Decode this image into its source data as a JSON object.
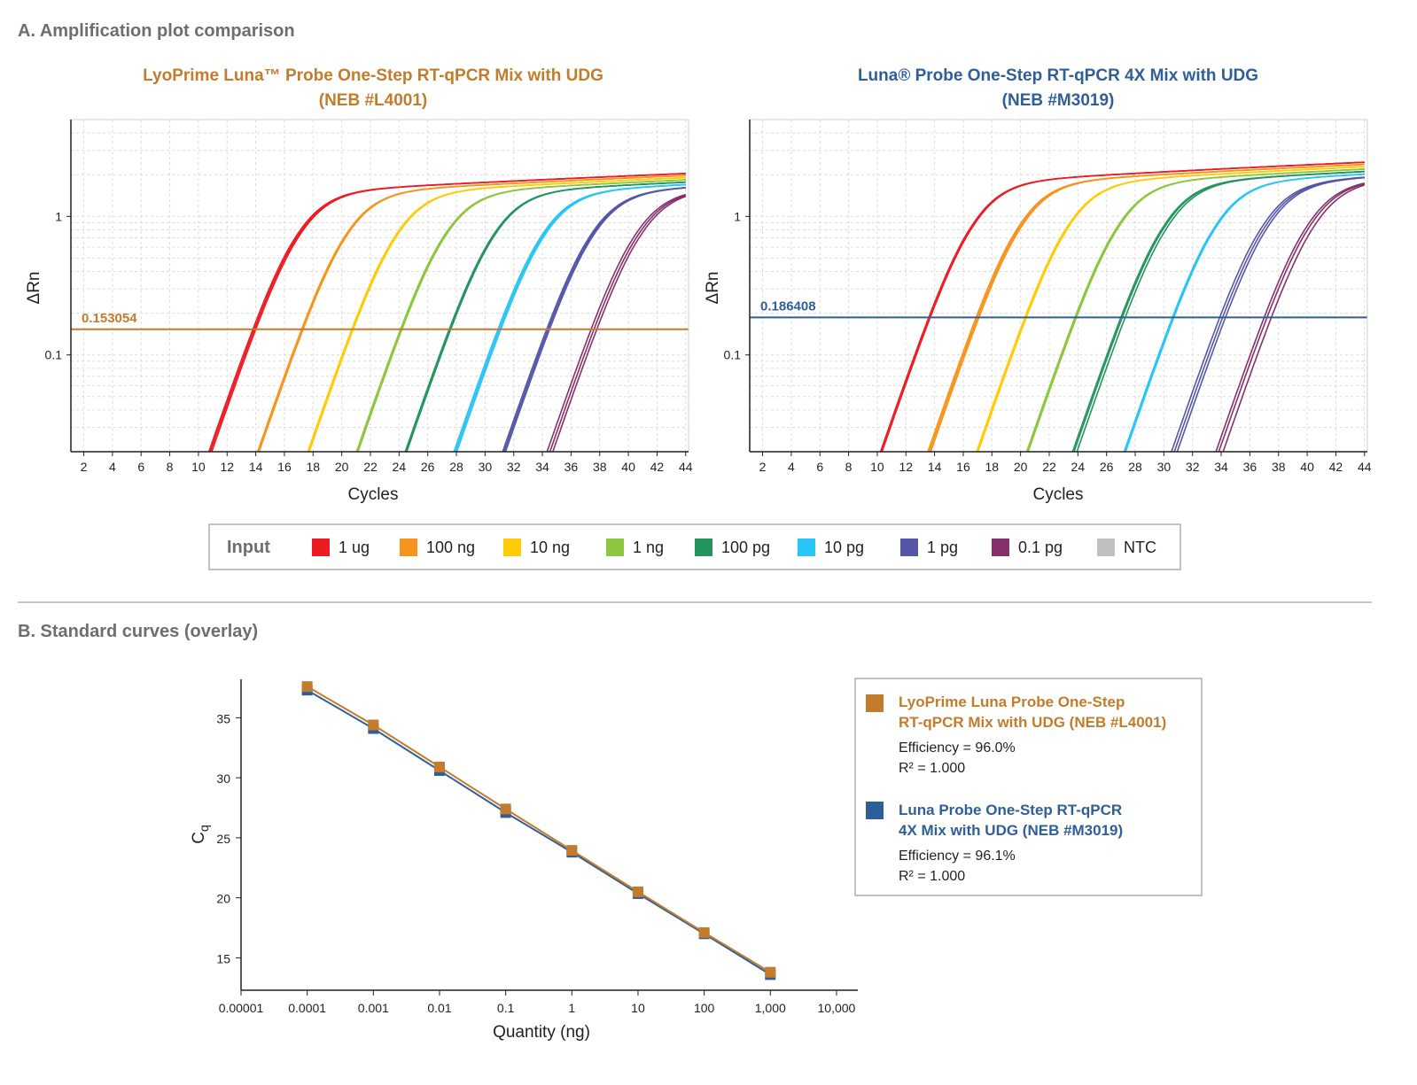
{
  "section_a_title": "A. Amplification plot comparison",
  "section_b_title": "B. Standard curves (overlay)",
  "legend_a": {
    "title": "Input",
    "items": [
      {
        "label": "1 ug",
        "color": "#ed1c24"
      },
      {
        "label": "100 ng",
        "color": "#f7941d"
      },
      {
        "label": "10 ng",
        "color": "#ffcb05"
      },
      {
        "label": "1 ng",
        "color": "#8dc63f"
      },
      {
        "label": "100 pg",
        "color": "#24955e"
      },
      {
        "label": "10 pg",
        "color": "#29c5f6"
      },
      {
        "label": "1 pg",
        "color": "#5656a8"
      },
      {
        "label": "0.1 pg",
        "color": "#86306e"
      },
      {
        "label": "NTC",
        "color": "#c0c0c0"
      }
    ]
  },
  "chart_data": [
    {
      "type": "line",
      "title_line1": "LyoPrime Luna™ Probe One-Step RT-qPCR Mix with UDG",
      "title_line2": "(NEB #L4001)",
      "title_color": "#c27c2c",
      "xlabel": "Cycles",
      "ylabel": "ΔRn",
      "y_scale": "log",
      "xlim": [
        1.1,
        44.2
      ],
      "ylim": [
        0.02,
        5
      ],
      "x_ticks": [
        "2",
        "4",
        "6",
        "8",
        "10",
        "12",
        "14",
        "16",
        "18",
        "20",
        "22",
        "24",
        "26",
        "28",
        "30",
        "32",
        "34",
        "36",
        "38",
        "40",
        "42",
        "44"
      ],
      "y_ticks": [
        "1",
        "0.1"
      ],
      "grid": true,
      "threshold": {
        "value": 0.153054,
        "label": "0.153054",
        "color": "#c27c2c"
      },
      "plateau": 1.5,
      "series": [
        {
          "name": "1 ug",
          "cq": [
            13.8,
            13.9,
            14.0
          ]
        },
        {
          "name": "100 ng",
          "cq": [
            17.2,
            17.3,
            17.3
          ]
        },
        {
          "name": "10 ng",
          "cq": [
            20.7,
            20.8,
            20.8
          ]
        },
        {
          "name": "1 ng",
          "cq": [
            24.1,
            24.2,
            24.2
          ]
        },
        {
          "name": "100 pg",
          "cq": [
            27.5,
            27.6,
            27.6
          ]
        },
        {
          "name": "10 pg",
          "cq": [
            30.9,
            31.0,
            31.1
          ]
        },
        {
          "name": "1 pg",
          "cq": [
            34.3,
            34.4,
            34.5
          ]
        },
        {
          "name": "0.1 pg",
          "cq": [
            37.4,
            37.6,
            37.8
          ]
        }
      ]
    },
    {
      "type": "line",
      "title_line1": "Luna® Probe One-Step RT-qPCR 4X Mix with UDG",
      "title_line2": "(NEB #M3019)",
      "title_color": "#2f5f98",
      "xlabel": "Cycles",
      "ylabel": "ΔRn",
      "y_scale": "log",
      "xlim": [
        1.1,
        44.2
      ],
      "ylim": [
        0.02,
        5
      ],
      "x_ticks": [
        "2",
        "4",
        "6",
        "8",
        "10",
        "12",
        "14",
        "16",
        "18",
        "20",
        "22",
        "24",
        "26",
        "28",
        "30",
        "32",
        "34",
        "36",
        "38",
        "40",
        "42",
        "44"
      ],
      "y_ticks": [
        "1",
        "0.1"
      ],
      "grid": true,
      "threshold": {
        "value": 0.186408,
        "label": "0.186408",
        "color": "#2f5f98"
      },
      "plateau": 1.75,
      "series": [
        {
          "name": "1 ug",
          "cq": [
            13.6,
            13.6,
            13.7
          ]
        },
        {
          "name": "100 ng",
          "cq": [
            16.9,
            17.0,
            17.1
          ]
        },
        {
          "name": "10 ng",
          "cq": [
            20.3,
            20.4,
            20.4
          ]
        },
        {
          "name": "1 ng",
          "cq": [
            23.8,
            23.8,
            23.9
          ]
        },
        {
          "name": "100 pg",
          "cq": [
            27.0,
            27.1,
            27.3
          ]
        },
        {
          "name": "10 pg",
          "cq": [
            30.6,
            30.6,
            30.7
          ]
        },
        {
          "name": "1 pg",
          "cq": [
            33.9,
            34.1,
            34.3
          ]
        },
        {
          "name": "0.1 pg",
          "cq": [
            37.0,
            37.2,
            37.5
          ]
        }
      ]
    },
    {
      "type": "line",
      "xlabel": "Quantity (ng)",
      "ylabel": "Cq",
      "x_scale": "log",
      "xlim": [
        1e-05,
        21000
      ],
      "ylim": [
        12.3,
        38.2
      ],
      "x_ticks": [
        "0.00001",
        "0.0001",
        "0.001",
        "0.01",
        "0.1",
        "1",
        "10",
        "100",
        "1,000",
        "10,000"
      ],
      "y_ticks": [
        "35",
        "30",
        "25",
        "20",
        "15"
      ],
      "x": [
        0.0001,
        0.001,
        0.01,
        0.1,
        1,
        10,
        100,
        1000
      ],
      "series": [
        {
          "name": "LyoPrime Luna Probe One-Step RT-qPCR Mix with UDG (NEB #L4001)",
          "legend_line1": "LyoPrime Luna Probe One-Step",
          "legend_line2": "RT-qPCR Mix with UDG (NEB #L4001)",
          "efficiency": "Efficiency = 96.0%",
          "r2": "R² = 1.000",
          "color": "#c27c2c",
          "values": [
            37.6,
            34.4,
            30.9,
            27.4,
            23.95,
            20.5,
            17.1,
            13.8
          ]
        },
        {
          "name": "Luna Probe One-Step RT-qPCR 4X Mix with UDG (NEB #M3019)",
          "legend_line1": "Luna Probe One-Step RT-qPCR",
          "legend_line2": "4X Mix with UDG (NEB #M3019)",
          "efficiency": "Efficiency = 96.1%",
          "r2": "R² = 1.000",
          "color": "#2f5f98",
          "values": [
            37.3,
            34.1,
            30.6,
            27.1,
            23.8,
            20.35,
            17.0,
            13.6
          ]
        }
      ]
    }
  ]
}
